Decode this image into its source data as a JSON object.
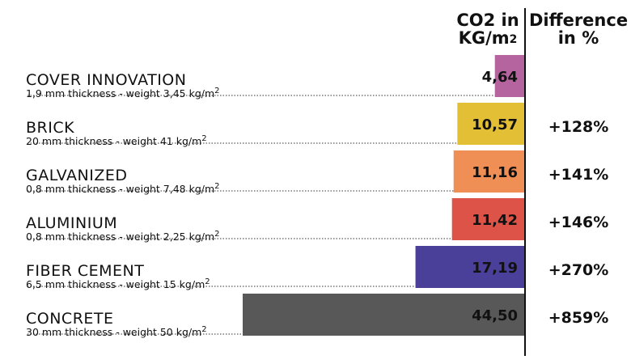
{
  "header": {
    "co2_line1": "CO2 in",
    "co2_line2": "KG/m",
    "co2_sup": "2",
    "diff_line1": "Difference",
    "diff_line2": "in %"
  },
  "rows": [
    {
      "name": "COVER INNOVATION",
      "spec": "1,9 mm thickness - weight 3,45 kg/m",
      "spec_sup": "2",
      "value_label": "4,64",
      "diff": "",
      "color": "#b5649f"
    },
    {
      "name": "BRICK",
      "spec": "20 mm thickness - weight 41 kg/m",
      "spec_sup": "2",
      "value_label": "10,57",
      "diff": "+128%",
      "color": "#e2bf35"
    },
    {
      "name": "GALVANIZED",
      "spec": "0,8 mm thickness - weight 7,48 kg/m",
      "spec_sup": "2",
      "value_label": "11,16",
      "diff": "+141%",
      "color": "#ef8f55"
    },
    {
      "name": "ALUMINIUM",
      "spec": "0,8 mm thickness - weight 2,25 kg/m",
      "spec_sup": "2",
      "value_label": "11,42",
      "diff": "+146%",
      "color": "#de5348"
    },
    {
      "name": "FIBER CEMENT",
      "spec": "6,5 mm thickness - weight 15 kg/m",
      "spec_sup": "2",
      "value_label": "17,19",
      "diff": "+270%",
      "color": "#4a3f99"
    },
    {
      "name": "CONCRETE",
      "spec": "30 mm thickness - weight 50 kg/m",
      "spec_sup": "2",
      "value_label": "44,50",
      "diff": "+859%",
      "color": "#585858"
    }
  ],
  "chart_data": {
    "type": "bar",
    "orientation": "horizontal",
    "categories": [
      "COVER INNOVATION",
      "BRICK",
      "GALVANIZED",
      "ALUMINIUM",
      "FIBER CEMENT",
      "CONCRETE"
    ],
    "values": [
      4.64,
      10.57,
      11.16,
      11.42,
      17.19,
      44.5
    ],
    "value_labels": [
      "4,64",
      "10,57",
      "11,16",
      "11,42",
      "17,19",
      "44,50"
    ],
    "differences": [
      "",
      "+128%",
      "+141%",
      "+146%",
      "+270%",
      "+859%"
    ],
    "title": "",
    "xlabel": "",
    "ylabel": "",
    "grid": false,
    "legend": "none"
  }
}
